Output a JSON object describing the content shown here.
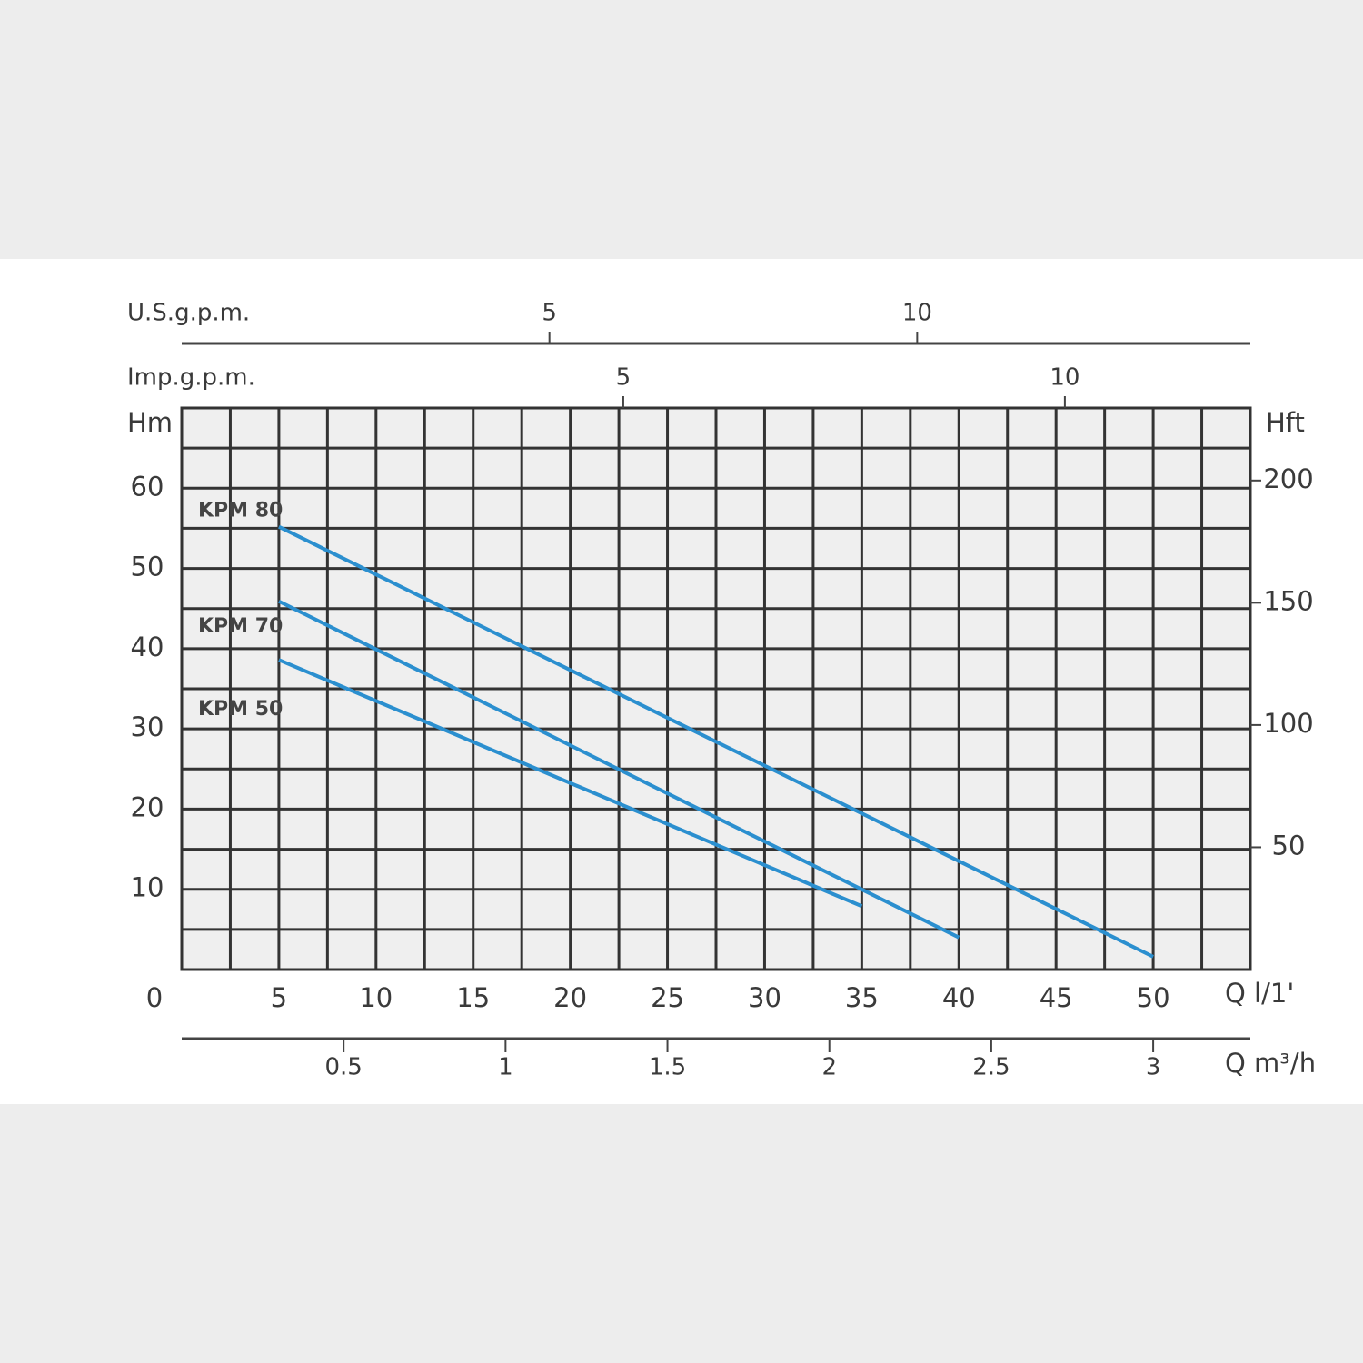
{
  "chart_data": {
    "type": "line",
    "x_label": "Q l/1'",
    "y_label": "Hm",
    "y2_label": "Hft",
    "xlim": [
      0,
      55
    ],
    "xticks": [
      0,
      5,
      10,
      15,
      20,
      25,
      30,
      35,
      40,
      45,
      50
    ],
    "xgrid": [
      2.5,
      5,
      7.5,
      10,
      12.5,
      15,
      17.5,
      20,
      22.5,
      25,
      27.5,
      30,
      32.5,
      35,
      37.5,
      40,
      42.5,
      45,
      47.5,
      50,
      52.5
    ],
    "ylim": [
      0,
      70
    ],
    "yticks": [
      10,
      20,
      30,
      40,
      50,
      60
    ],
    "ygrid": [
      5,
      10,
      15,
      20,
      25,
      30,
      35,
      40,
      45,
      50,
      55,
      60,
      65
    ],
    "y2lim": [
      0,
      229.66
    ],
    "y2ticks": [
      50,
      100,
      150,
      200
    ],
    "top_axis_1": {
      "label": "U.S.g.p.m.",
      "xlim": [
        0,
        14.53
      ],
      "xticks": [
        5,
        10
      ]
    },
    "top_axis_2": {
      "label": "Imp.g.p.m.",
      "xlim": [
        0,
        12.1
      ],
      "xticks": [
        5,
        10
      ]
    },
    "bottom_axis_2": {
      "label": "Q m³/h",
      "xlim": [
        0,
        3.3
      ],
      "xticks": [
        0.5,
        1,
        1.5,
        2,
        2.5,
        3
      ]
    },
    "grid": true,
    "series": [
      {
        "name": "KPM 80",
        "color": "#2b8fcf",
        "x": [
          5,
          50
        ],
        "values": [
          55.2,
          1.6
        ]
      },
      {
        "name": "KPM 70",
        "color": "#2b8fcf",
        "x": [
          5,
          40
        ],
        "values": [
          45.9,
          4
        ]
      },
      {
        "name": "KPM 50",
        "color": "#2b8fcf",
        "x": [
          5,
          35
        ],
        "values": [
          38.6,
          7.9
        ]
      }
    ]
  }
}
